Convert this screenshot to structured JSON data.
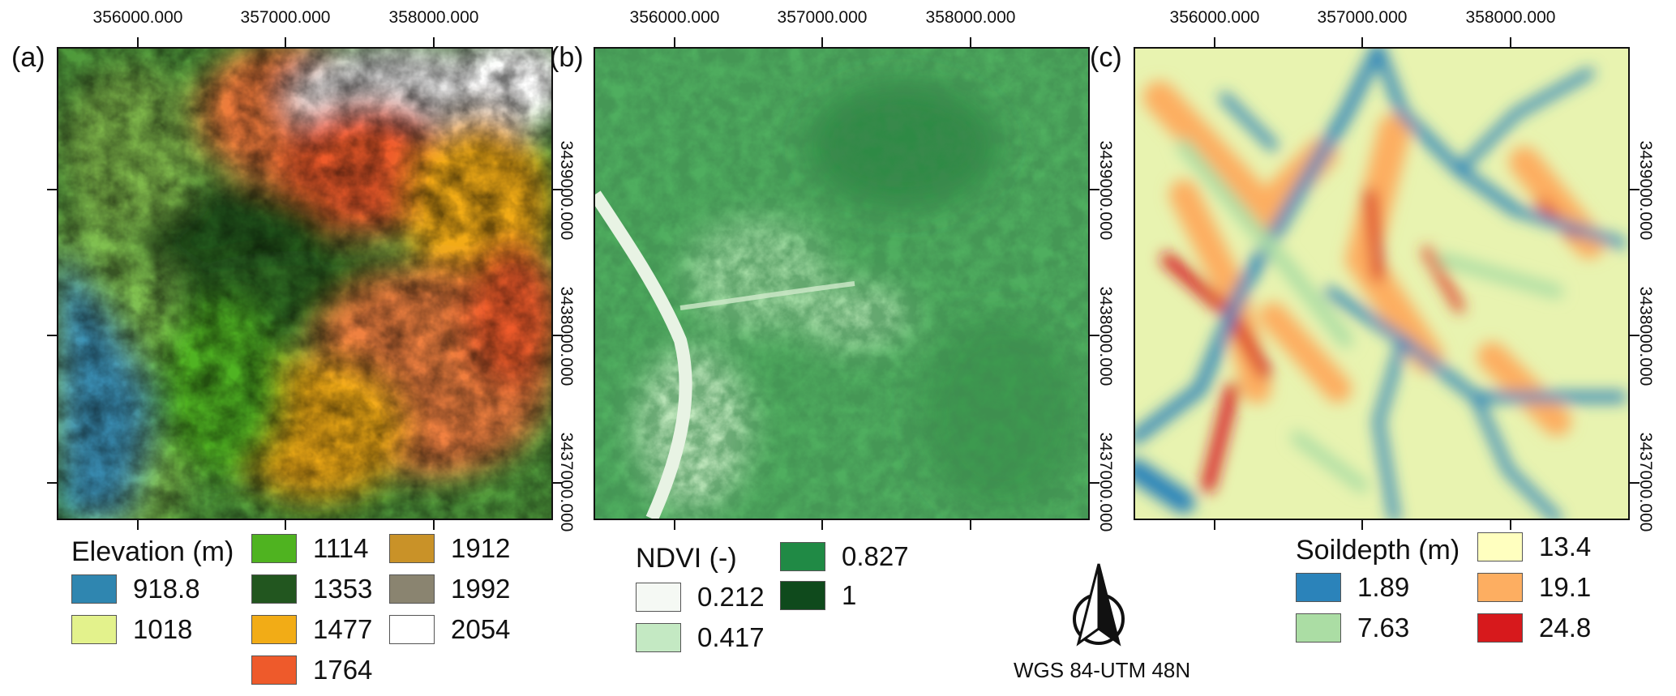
{
  "panels": [
    {
      "label": "(a)"
    },
    {
      "label": "(b)"
    },
    {
      "label": "(c)"
    }
  ],
  "axes": {
    "x_ticks": [
      "356000.000",
      "357000.000",
      "358000.000"
    ],
    "y_ticks": [
      "3439000.000",
      "3438000.000",
      "3437000.000"
    ]
  },
  "legends": {
    "elevation": {
      "title": "Elevation (m)",
      "items": [
        {
          "label": "918.8",
          "color": "#2f86b0"
        },
        {
          "label": "1018",
          "color": "#e3f28c"
        },
        {
          "label": "1114",
          "color": "#4fb320"
        },
        {
          "label": "1353",
          "color": "#22561f"
        },
        {
          "label": "1477",
          "color": "#f2ac16"
        },
        {
          "label": "1764",
          "color": "#ee5a2b"
        },
        {
          "label": "1912",
          "color": "#c99228"
        },
        {
          "label": "1992",
          "color": "#8a8470"
        },
        {
          "label": "2054",
          "color": "#ffffff"
        }
      ]
    },
    "ndvi": {
      "title": "NDVI (-)",
      "items": [
        {
          "label": "0.212",
          "color": "#f5f9f4"
        },
        {
          "label": "0.417",
          "color": "#c4e9c3"
        },
        {
          "label": "0.827",
          "color": "#208a45"
        },
        {
          "label": "1",
          "color": "#0f4a1c"
        }
      ]
    },
    "soildepth": {
      "title": "Soildepth (m)",
      "items": [
        {
          "label": "1.89",
          "color": "#2b83ba"
        },
        {
          "label": "7.63",
          "color": "#abdda4"
        },
        {
          "label": "13.4",
          "color": "#ffffbf"
        },
        {
          "label": "19.1",
          "color": "#fdae61"
        },
        {
          "label": "24.8",
          "color": "#d7191c"
        }
      ]
    }
  },
  "crs_label": "WGS 84-UTM 48N",
  "north_arrow": "north-arrow-icon"
}
